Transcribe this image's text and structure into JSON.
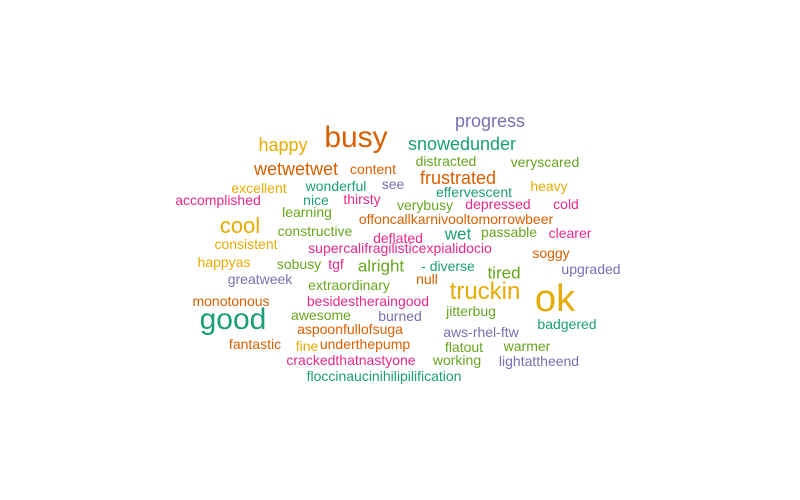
{
  "chart_data": {
    "type": "wordcloud",
    "palette": [
      "#1b9e77",
      "#d95f02",
      "#7570b3",
      "#e7298a",
      "#66a61e",
      "#e6ab02"
    ],
    "words": [
      {
        "text": "ok",
        "weight": 5,
        "color": "#e6ab02"
      },
      {
        "text": "good",
        "weight": 4,
        "color": "#1b9e77"
      },
      {
        "text": "busy",
        "weight": 4,
        "color": "#d95f02"
      },
      {
        "text": "truckin",
        "weight": 3,
        "color": "#e6ab02"
      },
      {
        "text": "cool",
        "weight": 3,
        "color": "#e6ab02"
      },
      {
        "text": "progress",
        "weight": 2,
        "color": "#7570b3"
      },
      {
        "text": "happy",
        "weight": 2,
        "color": "#e6ab02"
      },
      {
        "text": "snowedunder",
        "weight": 2,
        "color": "#1b9e77"
      },
      {
        "text": "wetwetwet",
        "weight": 2,
        "color": "#d95f02"
      },
      {
        "text": "frustrated",
        "weight": 2,
        "color": "#d95f02"
      },
      {
        "text": "alright",
        "weight": 2,
        "color": "#66a61e"
      },
      {
        "text": "wet",
        "weight": 2,
        "color": "#1b9e77"
      },
      {
        "text": "tired",
        "weight": 2,
        "color": "#66a61e"
      },
      {
        "text": "content",
        "weight": 1,
        "color": "#d95f02"
      },
      {
        "text": "distracted",
        "weight": 1,
        "color": "#66a61e"
      },
      {
        "text": "veryscared",
        "weight": 1,
        "color": "#66a61e"
      },
      {
        "text": "excellent",
        "weight": 1,
        "color": "#e6ab02"
      },
      {
        "text": "wonderful",
        "weight": 1,
        "color": "#1b9e77"
      },
      {
        "text": "see",
        "weight": 1,
        "color": "#7570b3"
      },
      {
        "text": "effervescent",
        "weight": 1,
        "color": "#1b9e77"
      },
      {
        "text": "heavy",
        "weight": 1,
        "color": "#e6ab02"
      },
      {
        "text": "accomplished",
        "weight": 1,
        "color": "#e7298a"
      },
      {
        "text": "nice",
        "weight": 1,
        "color": "#1b9e77"
      },
      {
        "text": "thirsty",
        "weight": 1,
        "color": "#e7298a"
      },
      {
        "text": "verybusy",
        "weight": 1,
        "color": "#66a61e"
      },
      {
        "text": "depressed",
        "weight": 1,
        "color": "#e7298a"
      },
      {
        "text": "cold",
        "weight": 1,
        "color": "#e7298a"
      },
      {
        "text": "learning",
        "weight": 1,
        "color": "#66a61e"
      },
      {
        "text": "offoncallkarnivooltomorrowbeer",
        "weight": 1,
        "color": "#d95f02"
      },
      {
        "text": "constructive",
        "weight": 1,
        "color": "#66a61e"
      },
      {
        "text": "deflated",
        "weight": 1,
        "color": "#e7298a"
      },
      {
        "text": "passable",
        "weight": 1,
        "color": "#66a61e"
      },
      {
        "text": "clearer",
        "weight": 1,
        "color": "#e7298a"
      },
      {
        "text": "consistent",
        "weight": 1,
        "color": "#e6ab02"
      },
      {
        "text": "supercalifragilisticexpialidocio",
        "weight": 1,
        "color": "#e7298a"
      },
      {
        "text": "soggy",
        "weight": 1,
        "color": "#d95f02"
      },
      {
        "text": "happyas",
        "weight": 1,
        "color": "#e6ab02"
      },
      {
        "text": "sobusy",
        "weight": 1,
        "color": "#66a61e"
      },
      {
        "text": "tgf",
        "weight": 1,
        "color": "#e7298a"
      },
      {
        "text": "- diverse",
        "weight": 1,
        "color": "#1b9e77"
      },
      {
        "text": "upgraded",
        "weight": 1,
        "color": "#7570b3"
      },
      {
        "text": "greatweek",
        "weight": 1,
        "color": "#7570b3"
      },
      {
        "text": "null",
        "weight": 1,
        "color": "#d95f02"
      },
      {
        "text": "extraordinary",
        "weight": 1,
        "color": "#66a61e"
      },
      {
        "text": "monotonous",
        "weight": 1,
        "color": "#d95f02"
      },
      {
        "text": "besidestheraingood",
        "weight": 1,
        "color": "#e7298a"
      },
      {
        "text": "awesome",
        "weight": 1,
        "color": "#66a61e"
      },
      {
        "text": "burned",
        "weight": 1,
        "color": "#7570b3"
      },
      {
        "text": "jitterbug",
        "weight": 1,
        "color": "#66a61e"
      },
      {
        "text": "badgered",
        "weight": 1,
        "color": "#1b9e77"
      },
      {
        "text": "aspoonfullofsuga",
        "weight": 1,
        "color": "#d95f02"
      },
      {
        "text": "aws-rhel-ftw",
        "weight": 1,
        "color": "#7570b3"
      },
      {
        "text": "fantastic",
        "weight": 1,
        "color": "#d95f02"
      },
      {
        "text": "fine",
        "weight": 1,
        "color": "#e6ab02"
      },
      {
        "text": "underthepump",
        "weight": 1,
        "color": "#d95f02"
      },
      {
        "text": "flatout",
        "weight": 1,
        "color": "#66a61e"
      },
      {
        "text": "warmer",
        "weight": 1,
        "color": "#66a61e"
      },
      {
        "text": "crackedthatnastyone",
        "weight": 1,
        "color": "#e7298a"
      },
      {
        "text": "working",
        "weight": 1,
        "color": "#66a61e"
      },
      {
        "text": "lightattheend",
        "weight": 1,
        "color": "#7570b3"
      },
      {
        "text": "floccinaucinihilipilification",
        "weight": 1,
        "color": "#1b9e77"
      }
    ]
  }
}
